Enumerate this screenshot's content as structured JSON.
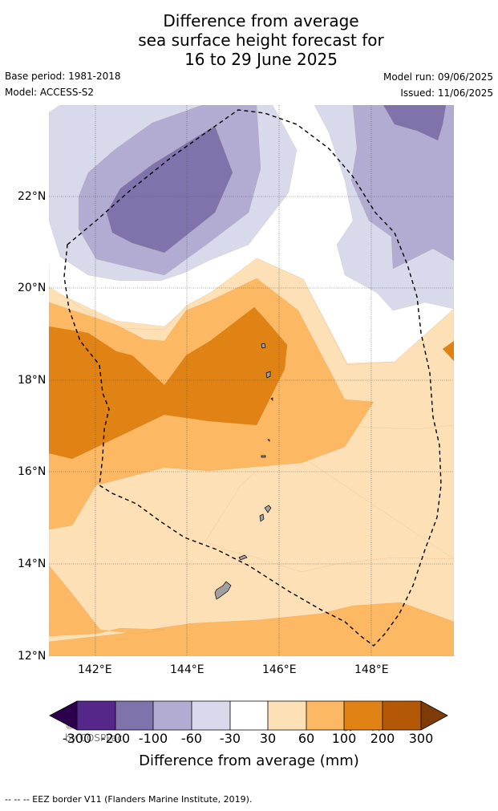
{
  "title": {
    "line1": "Difference from average",
    "line2": "sea surface height forecast for",
    "line3": "16 to 29 June 2025"
  },
  "meta": {
    "base_period": "Base period: 1981-2018",
    "model": "Model: ACCESS-S2",
    "model_run": "Model run: 09/06/2025",
    "issued": "Issued: 11/06/2025"
  },
  "map": {
    "lat_labels": [
      "22°N",
      "20°N",
      "18°N",
      "16°N",
      "14°N",
      "12°N"
    ],
    "lon_labels": [
      "142°E",
      "144°E",
      "146°E",
      "148°E"
    ],
    "copyright": "© Commonwealth of Australia 2025, Bureau of Meteorology, supported by COSPPac",
    "colors": {
      "n300": "#2d004b",
      "n200": "#542788",
      "n100": "#8073ac",
      "n60": "#b2abd2",
      "n30": "#d8daeb",
      "neutral": "#ffffff",
      "p30": "#fee0b6",
      "p60": "#fdb863",
      "p100": "#e08214",
      "p200": "#b35806",
      "p300": "#7f3b08",
      "land": "#a0a0a0",
      "eez": "#000000"
    }
  },
  "colorbar": {
    "ticks": [
      "-300",
      "-200",
      "-100",
      "-60",
      "-30",
      "30",
      "60",
      "100",
      "200",
      "300"
    ],
    "title": "Difference from average (mm)"
  },
  "footer": "--  --  -- EEZ border V11 (Flanders Marine Institute, 2019)."
}
